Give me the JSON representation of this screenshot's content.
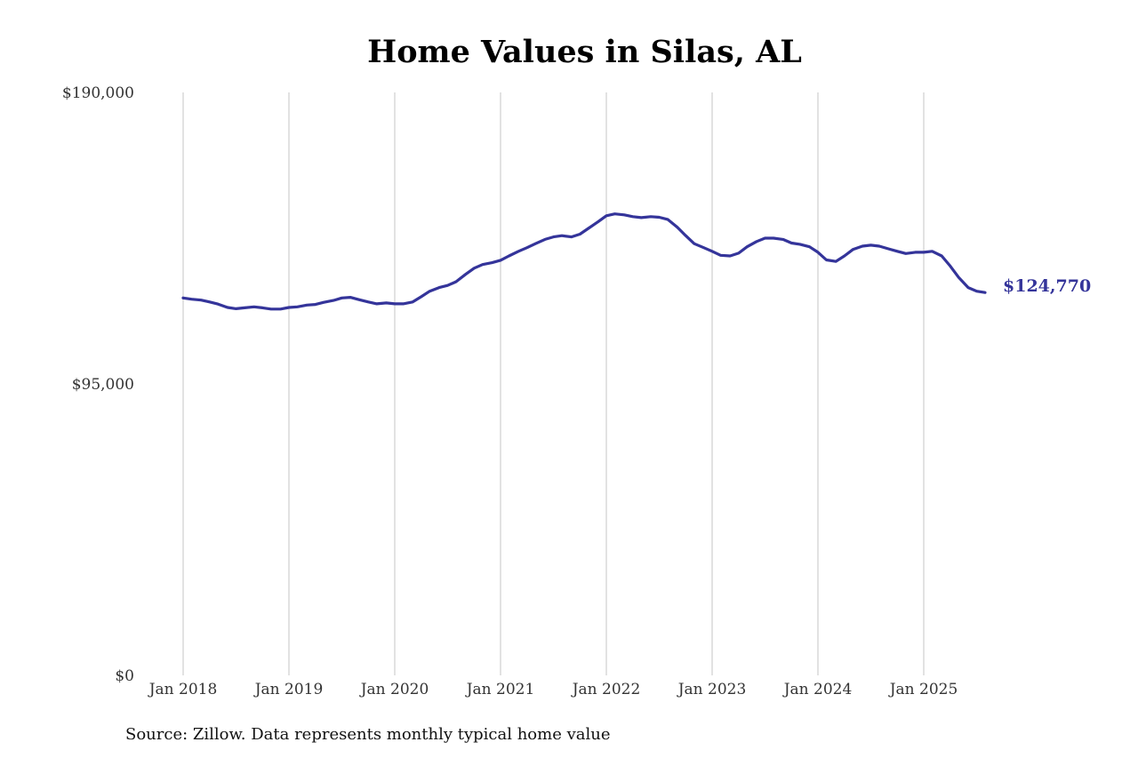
{
  "chart_data": {
    "type": "line",
    "title": "Home Values in Silas, AL",
    "xlabel": "",
    "ylabel": "",
    "ylim": [
      0,
      190000
    ],
    "y_ticks": [
      {
        "value": 0,
        "label": "$0"
      },
      {
        "value": 95000,
        "label": "$95,000"
      },
      {
        "value": 190000,
        "label": "$190,000"
      }
    ],
    "x_ticks": [
      {
        "value": 2018,
        "label": "Jan 2018"
      },
      {
        "value": 2019,
        "label": "Jan 2019"
      },
      {
        "value": 2020,
        "label": "Jan 2020"
      },
      {
        "value": 2021,
        "label": "Jan 2021"
      },
      {
        "value": 2022,
        "label": "Jan 2022"
      },
      {
        "value": 2023,
        "label": "Jan 2023"
      },
      {
        "value": 2024,
        "label": "Jan 2024"
      },
      {
        "value": 2025,
        "label": "Jan 2025"
      }
    ],
    "grid": {
      "vertical": true,
      "horizontal": false
    },
    "legend": "none",
    "series": [
      {
        "color": "#34349a",
        "end_label": "$124,770",
        "points": [
          [
            2018.0,
            123000
          ],
          [
            2018.08,
            122600
          ],
          [
            2018.17,
            122300
          ],
          [
            2018.25,
            121700
          ],
          [
            2018.33,
            121000
          ],
          [
            2018.42,
            119900
          ],
          [
            2018.5,
            119500
          ],
          [
            2018.58,
            119800
          ],
          [
            2018.67,
            120100
          ],
          [
            2018.75,
            119800
          ],
          [
            2018.83,
            119400
          ],
          [
            2018.92,
            119400
          ],
          [
            2019.0,
            119900
          ],
          [
            2019.08,
            120100
          ],
          [
            2019.17,
            120700
          ],
          [
            2019.25,
            120900
          ],
          [
            2019.33,
            121600
          ],
          [
            2019.42,
            122200
          ],
          [
            2019.5,
            123000
          ],
          [
            2019.58,
            123200
          ],
          [
            2019.67,
            122400
          ],
          [
            2019.75,
            121700
          ],
          [
            2019.83,
            121100
          ],
          [
            2019.92,
            121400
          ],
          [
            2020.0,
            121100
          ],
          [
            2020.08,
            121100
          ],
          [
            2020.17,
            121700
          ],
          [
            2020.25,
            123400
          ],
          [
            2020.33,
            125200
          ],
          [
            2020.42,
            126400
          ],
          [
            2020.5,
            127100
          ],
          [
            2020.58,
            128300
          ],
          [
            2020.67,
            130700
          ],
          [
            2020.75,
            132700
          ],
          [
            2020.83,
            133900
          ],
          [
            2020.92,
            134500
          ],
          [
            2021.0,
            135300
          ],
          [
            2021.08,
            136700
          ],
          [
            2021.17,
            138200
          ],
          [
            2021.25,
            139400
          ],
          [
            2021.33,
            140700
          ],
          [
            2021.42,
            142100
          ],
          [
            2021.5,
            142900
          ],
          [
            2021.58,
            143300
          ],
          [
            2021.67,
            142900
          ],
          [
            2021.75,
            143800
          ],
          [
            2021.83,
            145700
          ],
          [
            2021.92,
            147800
          ],
          [
            2022.0,
            149800
          ],
          [
            2022.08,
            150400
          ],
          [
            2022.17,
            150100
          ],
          [
            2022.25,
            149500
          ],
          [
            2022.33,
            149200
          ],
          [
            2022.42,
            149500
          ],
          [
            2022.5,
            149300
          ],
          [
            2022.58,
            148600
          ],
          [
            2022.67,
            146100
          ],
          [
            2022.75,
            143300
          ],
          [
            2022.83,
            140700
          ],
          [
            2022.92,
            139400
          ],
          [
            2023.0,
            138200
          ],
          [
            2023.08,
            136900
          ],
          [
            2023.17,
            136700
          ],
          [
            2023.25,
            137600
          ],
          [
            2023.33,
            139700
          ],
          [
            2023.42,
            141400
          ],
          [
            2023.5,
            142500
          ],
          [
            2023.58,
            142500
          ],
          [
            2023.67,
            142100
          ],
          [
            2023.75,
            140900
          ],
          [
            2023.83,
            140500
          ],
          [
            2023.92,
            139700
          ],
          [
            2024.0,
            137900
          ],
          [
            2024.08,
            135400
          ],
          [
            2024.17,
            134900
          ],
          [
            2024.25,
            136700
          ],
          [
            2024.33,
            138800
          ],
          [
            2024.42,
            139900
          ],
          [
            2024.5,
            140200
          ],
          [
            2024.58,
            139900
          ],
          [
            2024.67,
            139000
          ],
          [
            2024.75,
            138200
          ],
          [
            2024.83,
            137500
          ],
          [
            2024.92,
            137900
          ],
          [
            2025.0,
            137900
          ],
          [
            2025.08,
            138200
          ],
          [
            2025.17,
            136700
          ],
          [
            2025.25,
            133400
          ],
          [
            2025.33,
            129700
          ],
          [
            2025.42,
            126400
          ],
          [
            2025.5,
            125200
          ],
          [
            2025.58,
            124770
          ]
        ]
      }
    ]
  },
  "source_note": "Source: Zillow. Data represents monthly typical home value"
}
